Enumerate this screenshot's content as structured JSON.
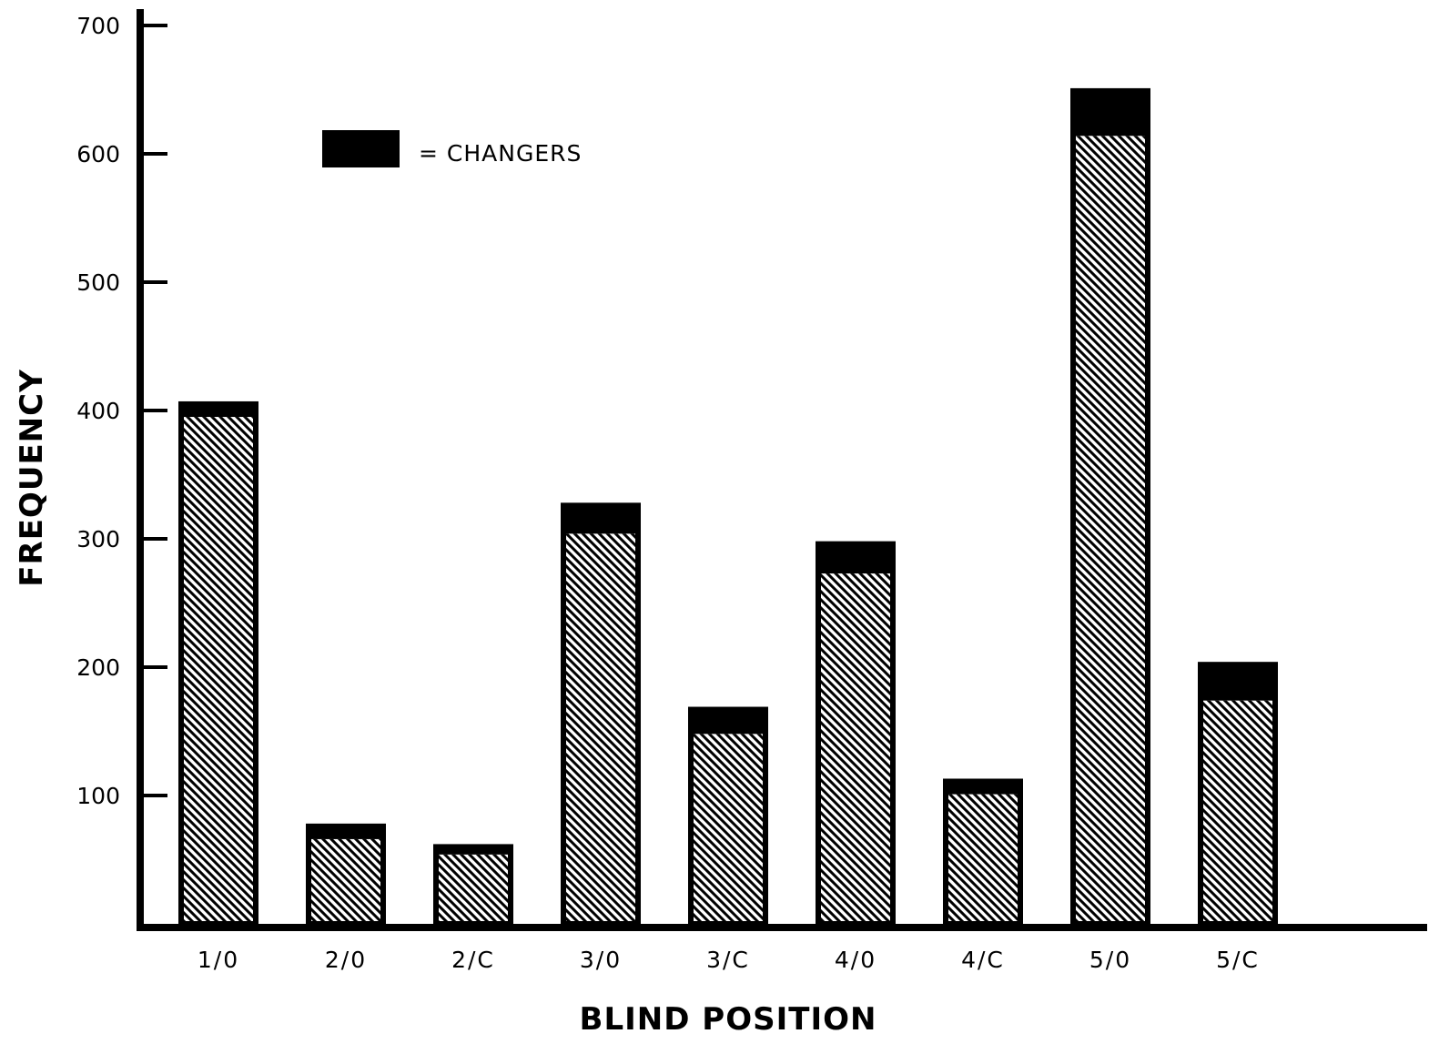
{
  "chart_data": {
    "type": "bar",
    "stacked": true,
    "title": "",
    "xlabel": "BLIND POSITION",
    "ylabel": "FREQUENCY",
    "ylim": [
      0,
      700
    ],
    "yticks": [
      100,
      200,
      300,
      400,
      500,
      600,
      700
    ],
    "grid": false,
    "categories": [
      "1/0",
      "2/0",
      "2/C",
      "3/0",
      "3/C",
      "4/0",
      "4/C",
      "5/0",
      "5/C"
    ],
    "series": [
      {
        "values": [
          395,
          66,
          54,
          304,
          148,
          273,
          101,
          614,
          174
        ],
        "color": "#000000",
        "fill": "diagonal-hatch"
      },
      {
        "name": "= CHANGERS",
        "values": [
          10,
          10,
          6,
          22,
          19,
          23,
          10,
          35,
          28
        ],
        "color": "#000000",
        "fill": "solid"
      }
    ],
    "totals": [
      405,
      76,
      60,
      326,
      167,
      296,
      111,
      649,
      202
    ],
    "legend": {
      "position": "top-left",
      "label": "= CHANGERS"
    }
  }
}
